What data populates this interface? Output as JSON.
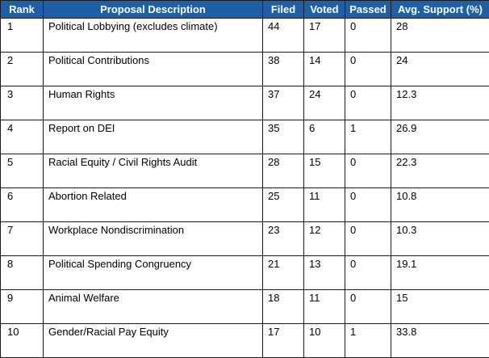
{
  "table": {
    "headers": {
      "rank": "Rank",
      "description": "Proposal Description",
      "filed": "Filed",
      "voted": "Voted",
      "passed": "Passed",
      "support": "Avg. Support (%)"
    },
    "rows": [
      {
        "rank": "1",
        "description": "Political Lobbying (excludes climate)",
        "filed": "44",
        "voted": "17",
        "passed": "0",
        "support": "28"
      },
      {
        "rank": "2",
        "description": "Political Contributions",
        "filed": "38",
        "voted": "14",
        "passed": "0",
        "support": "24"
      },
      {
        "rank": "3",
        "description": "Human Rights",
        "filed": "37",
        "voted": "24",
        "passed": "0",
        "support": "12.3"
      },
      {
        "rank": "4",
        "description": "Report on DEI",
        "filed": "35",
        "voted": "6",
        "passed": "1",
        "support": "26.9"
      },
      {
        "rank": "5",
        "description": "Racial Equity / Civil Rights Audit",
        "filed": "28",
        "voted": "15",
        "passed": "0",
        "support": "22.3"
      },
      {
        "rank": "6",
        "description": "Abortion Related",
        "filed": "25",
        "voted": "11",
        "passed": "0",
        "support": "10.8"
      },
      {
        "rank": "7",
        "description": "Workplace Nondiscrimination",
        "filed": "23",
        "voted": "12",
        "passed": "0",
        "support": "10.3"
      },
      {
        "rank": "8",
        "description": "Political Spending Congruency",
        "filed": "21",
        "voted": "13",
        "passed": "0",
        "support": "19.1"
      },
      {
        "rank": "9",
        "description": "Animal Welfare",
        "filed": "18",
        "voted": "11",
        "passed": "0",
        "support": "15"
      },
      {
        "rank": "10",
        "description": "Gender/Racial Pay Equity",
        "filed": "17",
        "voted": "10",
        "passed": "1",
        "support": "33.8"
      }
    ]
  },
  "colors": {
    "header_background": "#1f5fa8",
    "header_text": "#ffffff",
    "border": "#1a1a1a"
  }
}
